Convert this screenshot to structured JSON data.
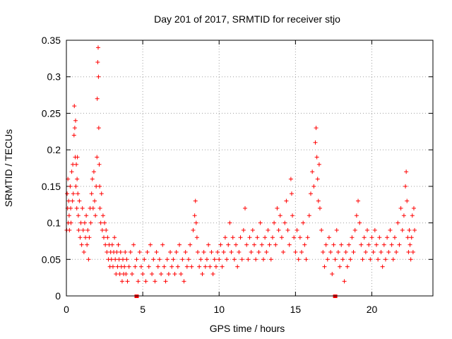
{
  "colors": {
    "series": "#ff0000",
    "grid": "#a0a0a0",
    "axis": "#000000"
  },
  "chart_data": {
    "type": "scatter",
    "title": "Day 201 of 2017, SRMTID for receiver stjo",
    "xlabel": "GPS time / hours",
    "ylabel": "SRMTID / TECUs",
    "xlim": [
      0,
      24
    ],
    "ylim": [
      0,
      0.35
    ],
    "grid": true,
    "xticks": [
      0,
      5,
      10,
      15,
      20
    ],
    "yticks": [
      0,
      0.05,
      0.1,
      0.15,
      0.2,
      0.25,
      0.3,
      0.35
    ],
    "xtick_labels": [
      "0",
      "5",
      "10",
      "15",
      "20"
    ],
    "ytick_labels": [
      "0",
      "0.05",
      "0.1",
      "0.15",
      "0.2",
      "0.25",
      "0.3",
      "0.35"
    ],
    "flag_points": [
      {
        "x": 4.6,
        "y": 0.0
      },
      {
        "x": 17.6,
        "y": 0.0
      }
    ],
    "series": [
      {
        "name": "SRMTID",
        "marker": "+",
        "points": [
          [
            0.02,
            0.09
          ],
          [
            0.05,
            0.14
          ],
          [
            0.08,
            0.12
          ],
          [
            0.1,
            0.16
          ],
          [
            0.12,
            0.1
          ],
          [
            0.15,
            0.13
          ],
          [
            0.18,
            0.11
          ],
          [
            0.2,
            0.09
          ],
          [
            0.25,
            0.15
          ],
          [
            0.28,
            0.12
          ],
          [
            0.3,
            0.1
          ],
          [
            0.35,
            0.17
          ],
          [
            0.4,
            0.13
          ],
          [
            0.42,
            0.18
          ],
          [
            0.45,
            0.14
          ],
          [
            0.5,
            0.22
          ],
          [
            0.52,
            0.26
          ],
          [
            0.55,
            0.23
          ],
          [
            0.58,
            0.19
          ],
          [
            0.6,
            0.24
          ],
          [
            0.62,
            0.15
          ],
          [
            0.65,
            0.18
          ],
          [
            0.68,
            0.12
          ],
          [
            0.7,
            0.16
          ],
          [
            0.72,
            0.19
          ],
          [
            0.75,
            0.14
          ],
          [
            0.78,
            0.11
          ],
          [
            0.8,
            0.09
          ],
          [
            0.85,
            0.13
          ],
          [
            0.9,
            0.08
          ],
          [
            0.95,
            0.1
          ],
          [
            1.0,
            0.07
          ],
          [
            1.05,
            0.12
          ],
          [
            1.1,
            0.09
          ],
          [
            1.15,
            0.06
          ],
          [
            1.2,
            0.1
          ],
          [
            1.25,
            0.08
          ],
          [
            1.3,
            0.11
          ],
          [
            1.35,
            0.07
          ],
          [
            1.4,
            0.09
          ],
          [
            1.45,
            0.05
          ],
          [
            1.5,
            0.08
          ],
          [
            1.55,
            0.12
          ],
          [
            1.6,
            0.1
          ],
          [
            1.65,
            0.14
          ],
          [
            1.7,
            0.16
          ],
          [
            1.75,
            0.12
          ],
          [
            1.8,
            0.17
          ],
          [
            1.85,
            0.13
          ],
          [
            1.9,
            0.11
          ],
          [
            1.95,
            0.15
          ],
          [
            2.0,
            0.19
          ],
          [
            2.02,
            0.27
          ],
          [
            2.05,
            0.32
          ],
          [
            2.08,
            0.34
          ],
          [
            2.1,
            0.3
          ],
          [
            2.12,
            0.23
          ],
          [
            2.15,
            0.18
          ],
          [
            2.18,
            0.15
          ],
          [
            2.2,
            0.12
          ],
          [
            2.25,
            0.1
          ],
          [
            2.3,
            0.14
          ],
          [
            2.35,
            0.09
          ],
          [
            2.4,
            0.11
          ],
          [
            2.45,
            0.08
          ],
          [
            2.5,
            0.1
          ],
          [
            2.55,
            0.07
          ],
          [
            2.6,
            0.09
          ],
          [
            2.65,
            0.06
          ],
          [
            2.7,
            0.08
          ],
          [
            2.75,
            0.05
          ],
          [
            2.8,
            0.07
          ],
          [
            2.85,
            0.04
          ],
          [
            2.9,
            0.06
          ],
          [
            2.95,
            0.05
          ],
          [
            3.0,
            0.07
          ],
          [
            3.05,
            0.04
          ],
          [
            3.1,
            0.06
          ],
          [
            3.15,
            0.08
          ],
          [
            3.2,
            0.05
          ],
          [
            3.25,
            0.03
          ],
          [
            3.3,
            0.06
          ],
          [
            3.35,
            0.04
          ],
          [
            3.4,
            0.07
          ],
          [
            3.45,
            0.05
          ],
          [
            3.5,
            0.03
          ],
          [
            3.55,
            0.06
          ],
          [
            3.6,
            0.04
          ],
          [
            3.65,
            0.02
          ],
          [
            3.7,
            0.05
          ],
          [
            3.75,
            0.03
          ],
          [
            3.8,
            0.04
          ],
          [
            3.85,
            0.06
          ],
          [
            3.9,
            0.03
          ],
          [
            3.95,
            0.05
          ],
          [
            4.0,
            0.02
          ],
          [
            4.1,
            0.04
          ],
          [
            4.2,
            0.06
          ],
          [
            4.3,
            0.03
          ],
          [
            4.4,
            0.07
          ],
          [
            4.5,
            0.04
          ],
          [
            4.6,
            0.05
          ],
          [
            4.7,
            0.02
          ],
          [
            4.8,
            0.06
          ],
          [
            4.9,
            0.04
          ],
          [
            5.0,
            0.03
          ],
          [
            5.1,
            0.05
          ],
          [
            5.2,
            0.02
          ],
          [
            5.3,
            0.06
          ],
          [
            5.4,
            0.04
          ],
          [
            5.5,
            0.07
          ],
          [
            5.6,
            0.03
          ],
          [
            5.7,
            0.05
          ],
          [
            5.8,
            0.02
          ],
          [
            5.9,
            0.06
          ],
          [
            6.0,
            0.04
          ],
          [
            6.1,
            0.05
          ],
          [
            6.2,
            0.03
          ],
          [
            6.3,
            0.07
          ],
          [
            6.4,
            0.04
          ],
          [
            6.5,
            0.02
          ],
          [
            6.6,
            0.05
          ],
          [
            6.7,
            0.03
          ],
          [
            6.8,
            0.06
          ],
          [
            6.9,
            0.04
          ],
          [
            7.0,
            0.05
          ],
          [
            7.1,
            0.03
          ],
          [
            7.2,
            0.06
          ],
          [
            7.3,
            0.04
          ],
          [
            7.4,
            0.07
          ],
          [
            7.5,
            0.03
          ],
          [
            7.6,
            0.05
          ],
          [
            7.7,
            0.02
          ],
          [
            7.8,
            0.06
          ],
          [
            7.9,
            0.04
          ],
          [
            8.0,
            0.05
          ],
          [
            8.1,
            0.07
          ],
          [
            8.2,
            0.04
          ],
          [
            8.3,
            0.09
          ],
          [
            8.4,
            0.11
          ],
          [
            8.45,
            0.13
          ],
          [
            8.5,
            0.1
          ],
          [
            8.55,
            0.08
          ],
          [
            8.6,
            0.06
          ],
          [
            8.7,
            0.04
          ],
          [
            8.8,
            0.05
          ],
          [
            8.9,
            0.03
          ],
          [
            9.0,
            0.06
          ],
          [
            9.1,
            0.04
          ],
          [
            9.2,
            0.05
          ],
          [
            9.3,
            0.07
          ],
          [
            9.4,
            0.04
          ],
          [
            9.5,
            0.06
          ],
          [
            9.6,
            0.03
          ],
          [
            9.7,
            0.05
          ],
          [
            9.8,
            0.04
          ],
          [
            9.9,
            0.06
          ],
          [
            10.0,
            0.05
          ],
          [
            10.1,
            0.07
          ],
          [
            10.2,
            0.04
          ],
          [
            10.3,
            0.06
          ],
          [
            10.4,
            0.08
          ],
          [
            10.5,
            0.05
          ],
          [
            10.6,
            0.07
          ],
          [
            10.7,
            0.1
          ],
          [
            10.8,
            0.06
          ],
          [
            10.9,
            0.08
          ],
          [
            11.0,
            0.05
          ],
          [
            11.1,
            0.07
          ],
          [
            11.2,
            0.04
          ],
          [
            11.3,
            0.06
          ],
          [
            11.4,
            0.08
          ],
          [
            11.5,
            0.05
          ],
          [
            11.6,
            0.09
          ],
          [
            11.7,
            0.12
          ],
          [
            11.8,
            0.07
          ],
          [
            11.9,
            0.05
          ],
          [
            12.0,
            0.08
          ],
          [
            12.1,
            0.06
          ],
          [
            12.2,
            0.09
          ],
          [
            12.3,
            0.07
          ],
          [
            12.4,
            0.05
          ],
          [
            12.5,
            0.08
          ],
          [
            12.6,
            0.06
          ],
          [
            12.7,
            0.1
          ],
          [
            12.8,
            0.07
          ],
          [
            12.9,
            0.05
          ],
          [
            13.0,
            0.08
          ],
          [
            13.1,
            0.06
          ],
          [
            13.2,
            0.09
          ],
          [
            13.3,
            0.07
          ],
          [
            13.4,
            0.05
          ],
          [
            13.5,
            0.08
          ],
          [
            13.6,
            0.1
          ],
          [
            13.7,
            0.07
          ],
          [
            13.8,
            0.12
          ],
          [
            13.9,
            0.09
          ],
          [
            14.0,
            0.11
          ],
          [
            14.1,
            0.08
          ],
          [
            14.2,
            0.06
          ],
          [
            14.3,
            0.1
          ],
          [
            14.4,
            0.13
          ],
          [
            14.5,
            0.09
          ],
          [
            14.6,
            0.07
          ],
          [
            14.7,
            0.16
          ],
          [
            14.75,
            0.14
          ],
          [
            14.8,
            0.11
          ],
          [
            14.9,
            0.08
          ],
          [
            15.0,
            0.06
          ],
          [
            15.1,
            0.09
          ],
          [
            15.2,
            0.05
          ],
          [
            15.3,
            0.08
          ],
          [
            15.4,
            0.06
          ],
          [
            15.5,
            0.1
          ],
          [
            15.6,
            0.07
          ],
          [
            15.7,
            0.05
          ],
          [
            15.8,
            0.08
          ],
          [
            15.9,
            0.11
          ],
          [
            16.0,
            0.14
          ],
          [
            16.1,
            0.17
          ],
          [
            16.2,
            0.15
          ],
          [
            16.3,
            0.21
          ],
          [
            16.35,
            0.23
          ],
          [
            16.4,
            0.19
          ],
          [
            16.45,
            0.16
          ],
          [
            16.5,
            0.13
          ],
          [
            16.55,
            0.18
          ],
          [
            16.6,
            0.12
          ],
          [
            16.7,
            0.09
          ],
          [
            16.8,
            0.06
          ],
          [
            16.9,
            0.04
          ],
          [
            17.0,
            0.07
          ],
          [
            17.1,
            0.05
          ],
          [
            17.2,
            0.08
          ],
          [
            17.3,
            0.06
          ],
          [
            17.4,
            0.03
          ],
          [
            17.5,
            0.07
          ],
          [
            17.6,
            0.05
          ],
          [
            17.7,
            0.09
          ],
          [
            17.8,
            0.06
          ],
          [
            17.9,
            0.04
          ],
          [
            18.0,
            0.07
          ],
          [
            18.1,
            0.05
          ],
          [
            18.2,
            0.02
          ],
          [
            18.3,
            0.06
          ],
          [
            18.4,
            0.04
          ],
          [
            18.5,
            0.07
          ],
          [
            18.6,
            0.05
          ],
          [
            18.7,
            0.08
          ],
          [
            18.8,
            0.06
          ],
          [
            18.9,
            0.09
          ],
          [
            19.0,
            0.11
          ],
          [
            19.1,
            0.13
          ],
          [
            19.2,
            0.1
          ],
          [
            19.3,
            0.07
          ],
          [
            19.4,
            0.05
          ],
          [
            19.5,
            0.08
          ],
          [
            19.6,
            0.06
          ],
          [
            19.7,
            0.09
          ],
          [
            19.8,
            0.07
          ],
          [
            19.9,
            0.05
          ],
          [
            20.0,
            0.08
          ],
          [
            20.1,
            0.06
          ],
          [
            20.2,
            0.09
          ],
          [
            20.3,
            0.07
          ],
          [
            20.4,
            0.05
          ],
          [
            20.5,
            0.08
          ],
          [
            20.6,
            0.06
          ],
          [
            20.7,
            0.04
          ],
          [
            20.8,
            0.07
          ],
          [
            20.9,
            0.05
          ],
          [
            21.0,
            0.08
          ],
          [
            21.1,
            0.06
          ],
          [
            21.2,
            0.09
          ],
          [
            21.3,
            0.07
          ],
          [
            21.4,
            0.05
          ],
          [
            21.5,
            0.08
          ],
          [
            21.6,
            0.06
          ],
          [
            21.7,
            0.1
          ],
          [
            21.8,
            0.07
          ],
          [
            21.9,
            0.12
          ],
          [
            22.0,
            0.09
          ],
          [
            22.1,
            0.11
          ],
          [
            22.2,
            0.15
          ],
          [
            22.25,
            0.17
          ],
          [
            22.3,
            0.13
          ],
          [
            22.35,
            0.08
          ],
          [
            22.4,
            0.06
          ],
          [
            22.45,
            0.09
          ],
          [
            22.5,
            0.07
          ],
          [
            22.55,
            0.05
          ],
          [
            22.6,
            0.08
          ],
          [
            22.65,
            0.11
          ],
          [
            22.7,
            0.06
          ],
          [
            22.75,
            0.12
          ],
          [
            22.8,
            0.09
          ]
        ]
      }
    ]
  }
}
